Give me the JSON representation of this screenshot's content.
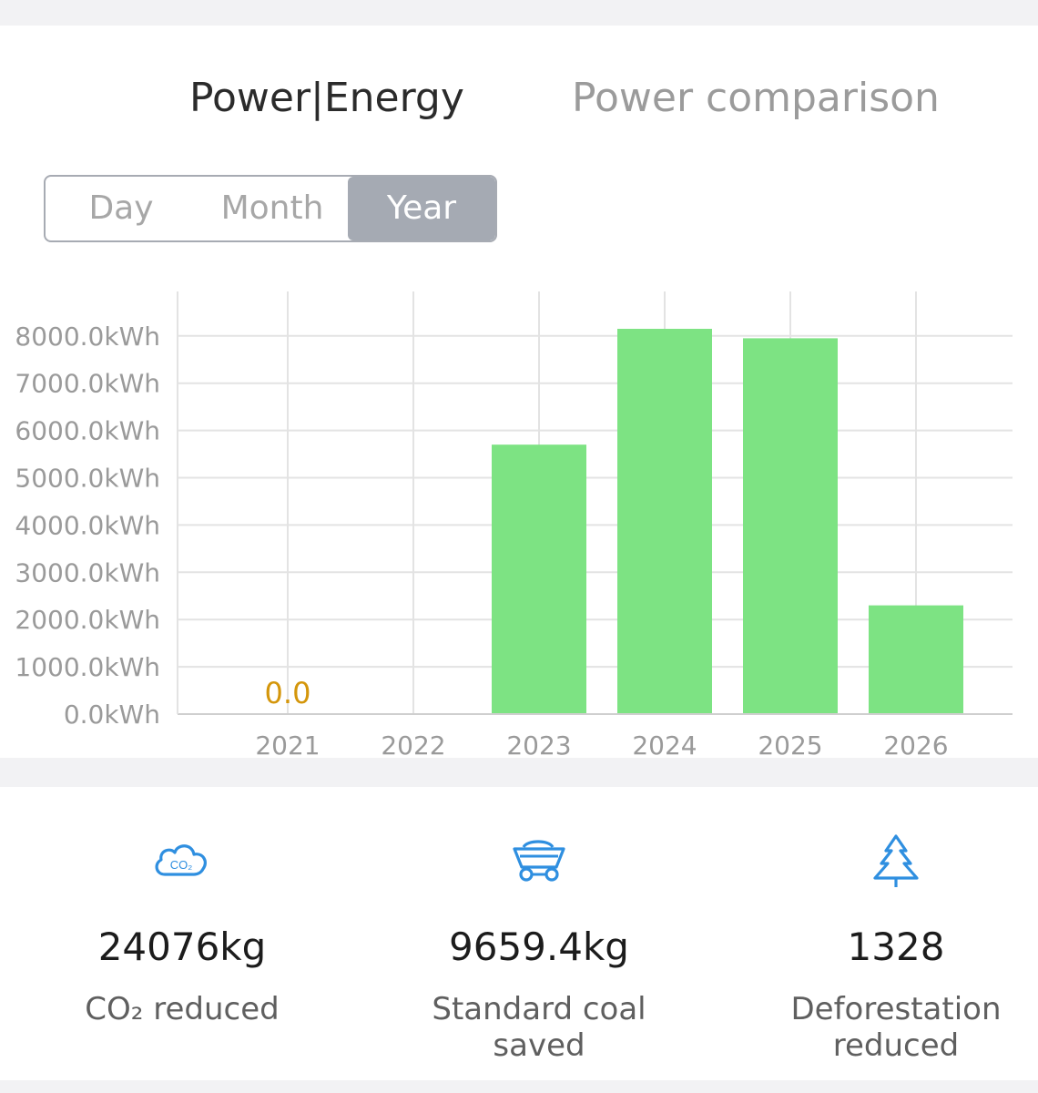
{
  "tabs": {
    "active_label": "Power|Energy",
    "inactive_label": "Power comparison"
  },
  "period_selector": {
    "options": [
      "Day",
      "Month",
      "Year"
    ],
    "selected": "Year"
  },
  "colors": {
    "bar": "#7de383",
    "grid": "#e3e3e3",
    "zero_label": "#d4960b",
    "icon": "#2f8fe0"
  },
  "chart_data": {
    "type": "bar",
    "categories": [
      "2021",
      "2022",
      "2023",
      "2024",
      "2025",
      "2026"
    ],
    "values": [
      0,
      0,
      5700,
      8150,
      7950,
      2300
    ],
    "yticks": [
      "0.0kWh",
      "1000.0kWh",
      "2000.0kWh",
      "3000.0kWh",
      "4000.0kWh",
      "5000.0kWh",
      "6000.0kWh",
      "7000.0kWh",
      "8000.0kWh"
    ],
    "ylim": [
      0,
      8000
    ],
    "data_labels": [
      {
        "category": "2021",
        "text": "0.0"
      }
    ],
    "grid": true,
    "legend": "none"
  },
  "stats": [
    {
      "icon": "co2-cloud-icon",
      "value": "24076kg",
      "label": "CO₂ reduced"
    },
    {
      "icon": "coal-cart-icon",
      "value": "9659.4kg",
      "label": "Standard coal saved"
    },
    {
      "icon": "tree-icon",
      "value": "1328",
      "label": "Deforestation reduced"
    }
  ]
}
